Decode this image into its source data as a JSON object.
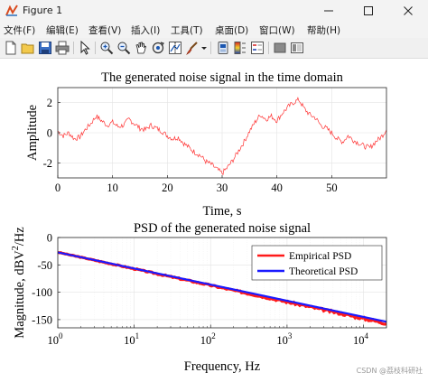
{
  "window": {
    "title": "Figure 1",
    "icons": {
      "app": "figure-app-icon",
      "minimize": "minimize-icon",
      "maximize": "maximize-icon",
      "close": "close-icon"
    }
  },
  "menu": {
    "items": [
      "文件(F)",
      "编辑(E)",
      "查看(V)",
      "插入(I)",
      "工具(T)",
      "桌面(D)",
      "窗口(W)",
      "帮助(H)"
    ]
  },
  "toolbar": {
    "icons": [
      "new-figure-icon",
      "open-file-icon",
      "save-icon",
      "print-icon",
      "pointer-icon",
      "zoom-in-icon",
      "zoom-out-icon",
      "pan-icon",
      "rotate-icon",
      "data-cursor-icon",
      "brush-icon",
      "brush-dropdown-icon",
      "link-icon",
      "colorbar-icon",
      "legend-icon",
      "hide-plot-tools-icon",
      "show-plot-tools-icon"
    ]
  },
  "chart_data": [
    {
      "type": "line",
      "title": "The generated noise signal in the time domain",
      "xlabel": "Time, s",
      "ylabel": "Amplitude",
      "xlim": [
        0,
        60
      ],
      "ylim": [
        -3,
        3
      ],
      "xticks": [
        0,
        10,
        20,
        30,
        40,
        50
      ],
      "yticks": [
        -2,
        0,
        2
      ],
      "grid": true,
      "series": [
        {
          "color": "#ff0000",
          "x": [
            0,
            1,
            2,
            3,
            4,
            5,
            6,
            7,
            8,
            9,
            10,
            11,
            12,
            13,
            14,
            15,
            16,
            17,
            18,
            19,
            20,
            21,
            22,
            23,
            24,
            25,
            26,
            27,
            28,
            29,
            30,
            31,
            32,
            33,
            34,
            35,
            36,
            37,
            38,
            39,
            40,
            41,
            42,
            43,
            44,
            45,
            46,
            47,
            48,
            49,
            50,
            51,
            52,
            53,
            54,
            55,
            56,
            57,
            58,
            59,
            60
          ],
          "y": [
            0.1,
            -0.2,
            0.0,
            -0.4,
            -0.3,
            0.2,
            0.6,
            1.1,
            0.8,
            0.5,
            0.7,
            0.4,
            0.5,
            0.9,
            0.6,
            0.3,
            0.2,
            0.5,
            0.3,
            0.1,
            -0.2,
            -0.4,
            -0.3,
            -0.7,
            -1.0,
            -1.3,
            -1.5,
            -1.9,
            -2.1,
            -2.4,
            -2.7,
            -2.3,
            -1.8,
            -1.2,
            -0.6,
            0.1,
            0.7,
            1.2,
            0.9,
            1.1,
            0.8,
            1.3,
            1.7,
            2.0,
            2.2,
            1.6,
            1.2,
            1.0,
            0.5,
            0.3,
            0.0,
            -0.4,
            -0.6,
            -0.2,
            -0.5,
            -0.7,
            -0.9,
            -1.0,
            -0.6,
            -0.3,
            0.2
          ]
        }
      ]
    },
    {
      "type": "line",
      "title": "PSD of the generated noise signal",
      "xlabel": "Frequency, Hz",
      "ylabel": "Magnitude, dBV²/Hz",
      "ylabel_parts": {
        "main": "Magnitude, dBV",
        "sup": "2",
        "tail": "/Hz"
      },
      "xscale": "log",
      "xlim": [
        1,
        20000
      ],
      "ylim": [
        -165,
        0
      ],
      "xticks": [
        1,
        10,
        100,
        1000,
        10000
      ],
      "xtick_labels": {
        "base": [
          "10",
          "10",
          "10",
          "10",
          "10"
        ],
        "exp": [
          "0",
          "1",
          "2",
          "3",
          "4"
        ]
      },
      "yticks": [
        0,
        -50,
        -100,
        -150
      ],
      "ytick_labels": [
        "0",
        "-50",
        "-100",
        "-150"
      ],
      "grid": true,
      "legend_position": "top-right",
      "series": [
        {
          "name": "Empirical PSD",
          "color": "#ff0000",
          "x": [
            1,
            20000
          ],
          "y": [
            -27,
            -157
          ]
        },
        {
          "name": "Theoretical PSD",
          "color": "#0000ff",
          "x": [
            1,
            20000
          ],
          "y": [
            -27,
            -154
          ]
        }
      ]
    }
  ],
  "watermark": "CSDN @荔枝科研社"
}
